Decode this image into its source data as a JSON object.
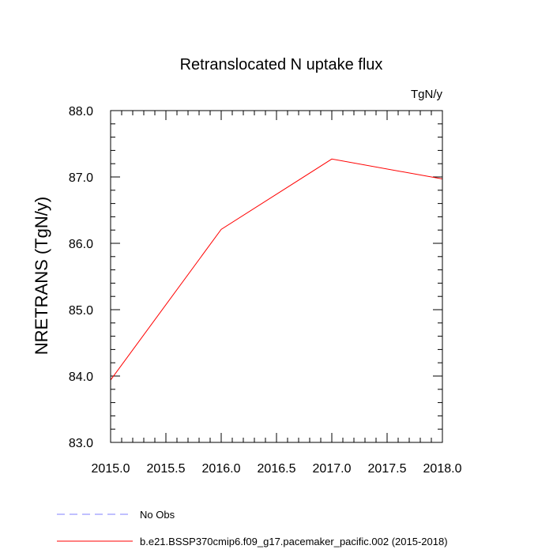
{
  "chart_data": {
    "type": "line",
    "title": "Retranslocated N uptake flux",
    "units": "TgN/y",
    "ylabel": "NRETRANS  (TgN/y)",
    "xlabel": "",
    "xlim": [
      2015.0,
      2018.0
    ],
    "ylim": [
      83.0,
      88.0
    ],
    "x_ticks": [
      "2015.0",
      "2015.5",
      "2016.0",
      "2016.5",
      "2017.0",
      "2017.5",
      "2018.0"
    ],
    "y_ticks": [
      "83.0",
      "84.0",
      "85.0",
      "86.0",
      "87.0",
      "88.0"
    ],
    "grid": false,
    "legend_position": "bottom",
    "series": [
      {
        "name": "b.e21.BSSP370cmip6.f09_g17.pacemaker_pacific.002 (2015-2018)",
        "color": "#ff0000",
        "dash": "solid",
        "x": [
          2015.0,
          2016.0,
          2017.0,
          2018.0
        ],
        "y": [
          83.94,
          86.21,
          87.27,
          86.97
        ]
      }
    ],
    "legend": [
      {
        "label": "No Obs",
        "color": "#8080ff",
        "dash": "dashed"
      },
      {
        "label": "b.e21.BSSP370cmip6.f09_g17.pacemaker_pacific.002 (2015-2018)",
        "color": "#ff0000",
        "dash": "solid"
      }
    ]
  }
}
